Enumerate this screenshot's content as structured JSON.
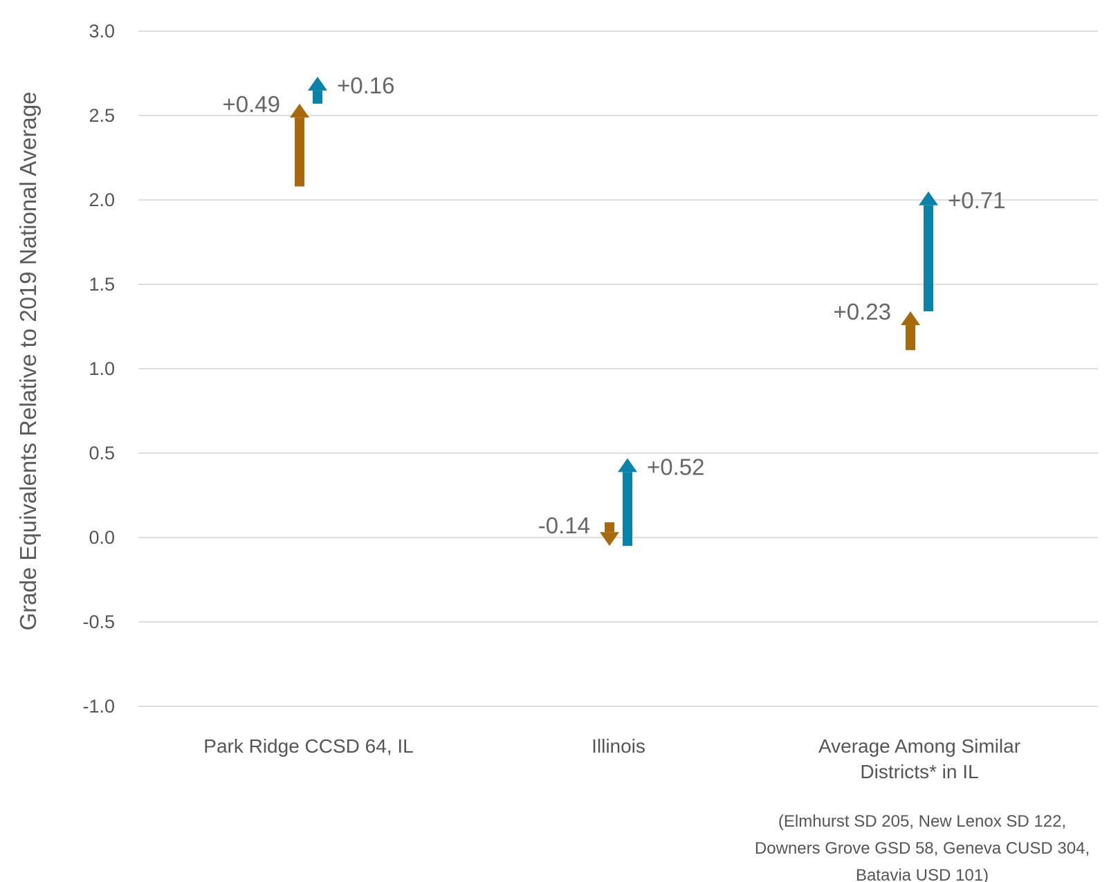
{
  "chart_data": {
    "type": "arrow",
    "ylabel": "Grade Equivalents Relative to 2019 National Average",
    "ylim": [
      -1.0,
      3.0
    ],
    "yticks": [
      "3.0",
      "2.5",
      "2.0",
      "1.5",
      "1.0",
      "0.5",
      "0.0",
      "-0.5",
      "-1.0"
    ],
    "ytick_values": [
      3.0,
      2.5,
      2.0,
      1.5,
      1.0,
      0.5,
      0.0,
      -0.5,
      -1.0
    ],
    "grid": true,
    "categories": [
      {
        "lines": [
          "Park Ridge CCSD 64, IL"
        ]
      },
      {
        "lines": [
          "Illinois"
        ]
      },
      {
        "lines": [
          "Average Among Similar",
          "Districts* in IL"
        ]
      }
    ],
    "series": [
      {
        "color": "#a8690c",
        "arrows": [
          {
            "category": 0,
            "start": 2.08,
            "end": 2.57,
            "label": "+0.49"
          },
          {
            "category": 1,
            "start": 0.09,
            "end": -0.05,
            "label": "-0.14"
          },
          {
            "category": 2,
            "start": 1.11,
            "end": 1.34,
            "label": "+0.23"
          }
        ]
      },
      {
        "color": "#0b83a8",
        "arrows": [
          {
            "category": 0,
            "start": 2.57,
            "end": 2.73,
            "label": "+0.16"
          },
          {
            "category": 1,
            "start": -0.05,
            "end": 0.47,
            "label": "+0.52"
          },
          {
            "category": 2,
            "start": 1.34,
            "end": 2.05,
            "label": "+0.71"
          }
        ]
      }
    ],
    "footnote": [
      "(Elmhurst SD 205, New Lenox SD 122,",
      "Downers Grove GSD 58, Geneva CUSD 304,",
      "Batavia USD 101)"
    ]
  }
}
